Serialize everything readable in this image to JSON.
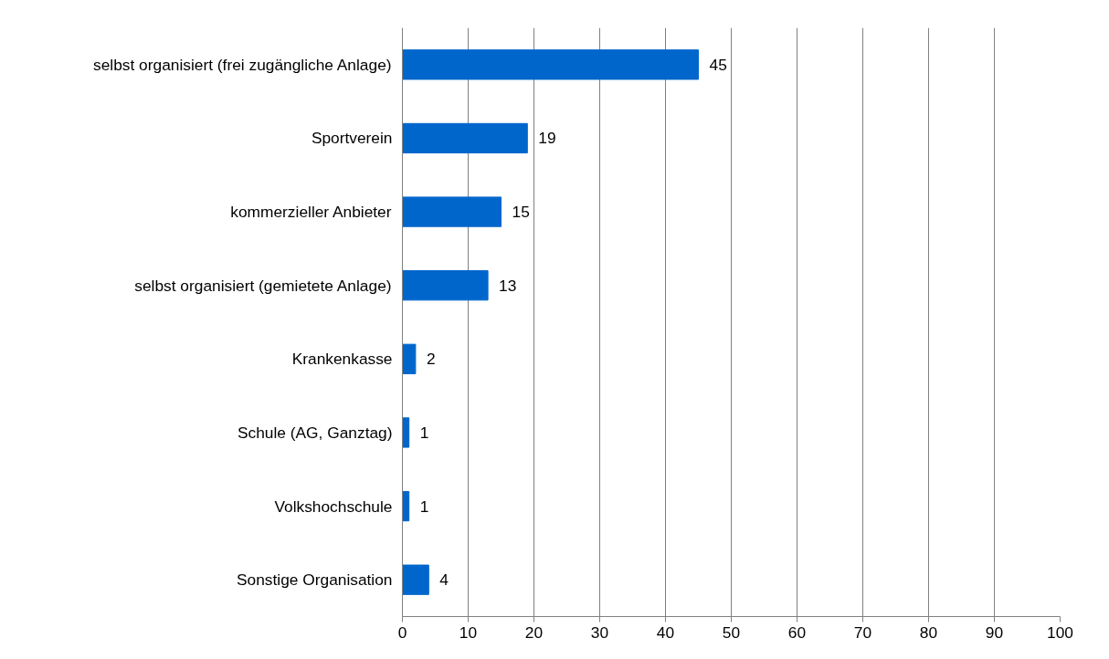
{
  "chart_data": {
    "type": "bar",
    "orientation": "horizontal",
    "categories": [
      "selbst organisiert (frei zugängliche Anlage)",
      "Sportverein",
      "kommerzieller Anbieter",
      "selbst organisiert (gemietete Anlage)",
      "Krankenkasse",
      "Schule (AG, Ganztag)",
      "Volkshochschule",
      "Sonstige Organisation"
    ],
    "values": [
      45,
      19,
      15,
      13,
      2,
      1,
      1,
      4
    ],
    "color": "#0066cc",
    "xlim": [
      0,
      100
    ],
    "xticks": [
      0,
      10,
      20,
      30,
      40,
      50,
      60,
      70,
      80,
      90,
      100
    ],
    "grid": "x",
    "data_labels": true
  }
}
